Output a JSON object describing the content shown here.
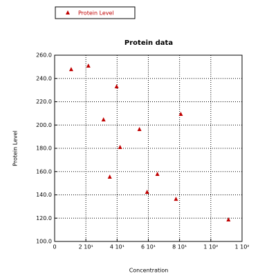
{
  "chart_data": {
    "type": "scatter",
    "title": "Protein data",
    "x_label": "Concentration",
    "y_label": "Protein Level",
    "series": [
      {
        "name": "Protein Level",
        "color": "#c00000",
        "marker": "triangle",
        "x": [
          10.6,
          21.6,
          31.3,
          35.3,
          39.7,
          41.9,
          54.3,
          59.2,
          65.8,
          77.7,
          80.8,
          111.3
        ],
        "values": [
          248.1,
          251.1,
          204.9,
          155.7,
          233.3,
          181.2,
          196.6,
          142.7,
          158.1,
          136.7,
          209.6,
          119.0
        ]
      }
    ],
    "xlim": [
      0,
      120
    ],
    "xticks": [
      0,
      {
        "value": 20,
        "label": "2 10¹"
      },
      {
        "value": 40,
        "label": "4 10¹"
      },
      {
        "value": 60,
        "label": "6 10¹"
      },
      {
        "value": 80,
        "label": "8 10¹"
      },
      {
        "value": 100,
        "label": "1 10²"
      },
      {
        "value": 120,
        "label": "1 10²"
      }
    ],
    "ylim": [
      100,
      260
    ],
    "yticks": [
      {
        "value": 100,
        "label": "100.0"
      },
      {
        "value": 120,
        "label": "120.0"
      },
      {
        "value": 140,
        "label": "140.0"
      },
      {
        "value": 160,
        "label": "160.0"
      },
      {
        "value": 180,
        "label": "180.0"
      },
      {
        "value": 200,
        "label": "200.0"
      },
      {
        "value": 220,
        "label": "220.0"
      },
      {
        "value": 240,
        "label": "240.0"
      },
      {
        "value": 260,
        "label": "260.0"
      }
    ],
    "grid": true,
    "legend": "top-left"
  }
}
